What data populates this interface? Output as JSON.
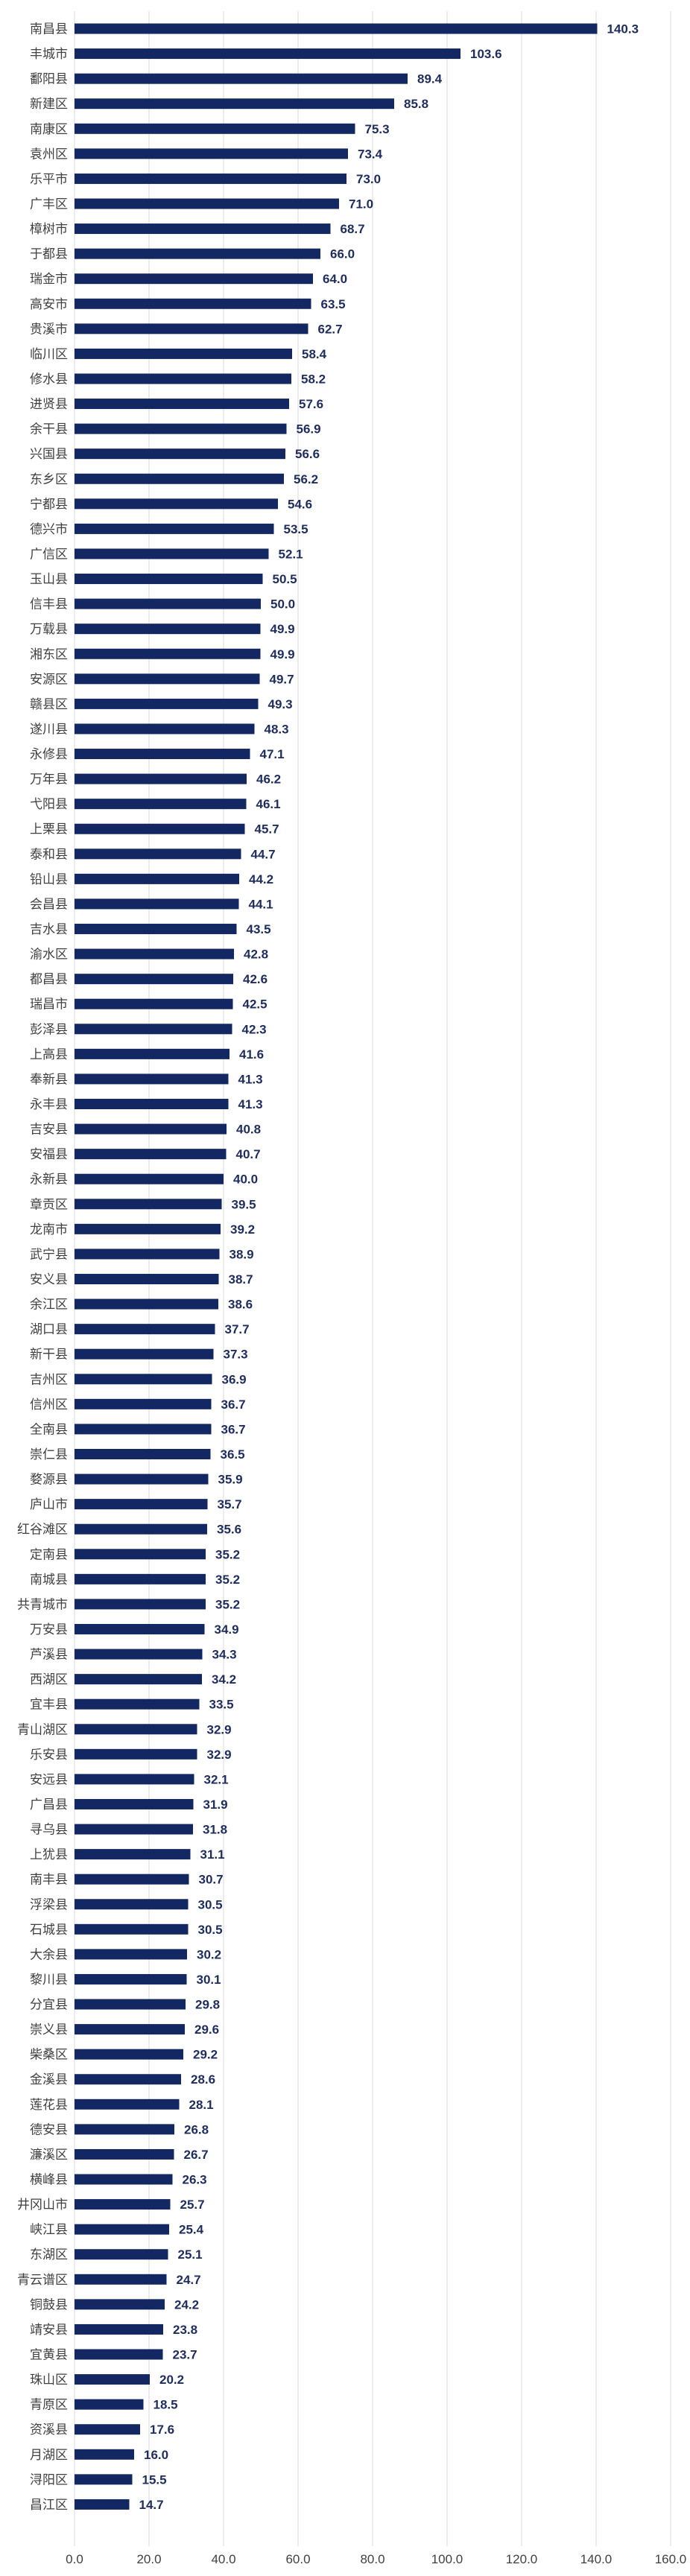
{
  "chart_data": {
    "type": "bar",
    "orientation": "horizontal",
    "title": "",
    "xlabel": "",
    "ylabel": "",
    "xlim": [
      0,
      160
    ],
    "x_ticks": [
      "0.0",
      "20.0",
      "40.0",
      "60.0",
      "80.0",
      "100.0",
      "120.0",
      "140.0",
      "160.0"
    ],
    "grid": true,
    "bar_color": "#132863",
    "categories": [
      "南昌县",
      "丰城市",
      "鄱阳县",
      "新建区",
      "南康区",
      "袁州区",
      "乐平市",
      "广丰区",
      "樟树市",
      "于都县",
      "瑞金市",
      "高安市",
      "贵溪市",
      "临川区",
      "修水县",
      "进贤县",
      "余干县",
      "兴国县",
      "东乡区",
      "宁都县",
      "德兴市",
      "广信区",
      "玉山县",
      "信丰县",
      "万载县",
      "湘东区",
      "安源区",
      "赣县区",
      "遂川县",
      "永修县",
      "万年县",
      "弋阳县",
      "上栗县",
      "泰和县",
      "铅山县",
      "会昌县",
      "吉水县",
      "渝水区",
      "都昌县",
      "瑞昌市",
      "彭泽县",
      "上高县",
      "奉新县",
      "永丰县",
      "吉安县",
      "安福县",
      "永新县",
      "章贡区",
      "龙南市",
      "武宁县",
      "安义县",
      "余江区",
      "湖口县",
      "新干县",
      "吉州区",
      "信州区",
      "全南县",
      "崇仁县",
      "婺源县",
      "庐山市",
      "红谷滩区",
      "定南县",
      "南城县",
      "共青城市",
      "万安县",
      "芦溪县",
      "西湖区",
      "宜丰县",
      "青山湖区",
      "乐安县",
      "安远县",
      "广昌县",
      "寻乌县",
      "上犹县",
      "南丰县",
      "浮梁县",
      "石城县",
      "大余县",
      "黎川县",
      "分宜县",
      "崇义县",
      "柴桑区",
      "金溪县",
      "莲花县",
      "德安县",
      "濂溪区",
      "横峰县",
      "井冈山市",
      "峡江县",
      "东湖区",
      "青云谱区",
      "铜鼓县",
      "靖安县",
      "宜黄县",
      "珠山区",
      "青原区",
      "资溪县",
      "月湖区",
      "浔阳区",
      "昌江区"
    ],
    "values": [
      140.3,
      103.6,
      89.4,
      85.8,
      75.3,
      73.4,
      73.0,
      71.0,
      68.7,
      66.0,
      64.0,
      63.5,
      62.7,
      58.4,
      58.2,
      57.6,
      56.9,
      56.6,
      56.2,
      54.6,
      53.5,
      52.1,
      50.5,
      50.0,
      49.9,
      49.9,
      49.7,
      49.3,
      48.3,
      47.1,
      46.2,
      46.1,
      45.7,
      44.7,
      44.2,
      44.1,
      43.5,
      42.8,
      42.6,
      42.5,
      42.3,
      41.6,
      41.3,
      41.3,
      40.8,
      40.7,
      40.0,
      39.5,
      39.2,
      38.9,
      38.7,
      38.6,
      37.7,
      37.3,
      36.9,
      36.7,
      36.7,
      36.5,
      35.9,
      35.7,
      35.6,
      35.2,
      35.2,
      35.2,
      34.9,
      34.3,
      34.2,
      33.5,
      32.9,
      32.9,
      32.1,
      31.9,
      31.8,
      31.1,
      30.7,
      30.5,
      30.5,
      30.2,
      30.1,
      29.8,
      29.6,
      29.2,
      28.6,
      28.1,
      26.8,
      26.7,
      26.3,
      25.7,
      25.4,
      25.1,
      24.7,
      24.2,
      23.8,
      23.7,
      20.2,
      18.5,
      17.6,
      16.0,
      15.5,
      14.7
    ],
    "value_labels": [
      "140.3",
      "103.6",
      "89.4",
      "85.8",
      "75.3",
      "73.4",
      "73.0",
      "71.0",
      "68.7",
      "66.0",
      "64.0",
      "63.5",
      "62.7",
      "58.4",
      "58.2",
      "57.6",
      "56.9",
      "56.6",
      "56.2",
      "54.6",
      "53.5",
      "52.1",
      "50.5",
      "50.0",
      "49.9",
      "49.9",
      "49.7",
      "49.3",
      "48.3",
      "47.1",
      "46.2",
      "46.1",
      "45.7",
      "44.7",
      "44.2",
      "44.1",
      "43.5",
      "42.8",
      "42.6",
      "42.5",
      "42.3",
      "41.6",
      "41.3",
      "41.3",
      "40.8",
      "40.7",
      "40.0",
      "39.5",
      "39.2",
      "38.9",
      "38.7",
      "38.6",
      "37.7",
      "37.3",
      "36.9",
      "36.7",
      "36.7",
      "36.5",
      "35.9",
      "35.7",
      "35.6",
      "35.2",
      "35.2",
      "35.2",
      "34.9",
      "34.3",
      "34.2",
      "33.5",
      "32.9",
      "32.9",
      "32.1",
      "31.9",
      "31.8",
      "31.1",
      "30.7",
      "30.5",
      "30.5",
      "30.2",
      "30.1",
      "29.8",
      "29.6",
      "29.2",
      "28.6",
      "28.1",
      "26.8",
      "26.7",
      "26.3",
      "25.7",
      "25.4",
      "25.1",
      "24.7",
      "24.2",
      "23.8",
      "23.7",
      "20.2",
      "18.5",
      "17.6",
      "16.0",
      "15.5",
      "14.7"
    ]
  }
}
